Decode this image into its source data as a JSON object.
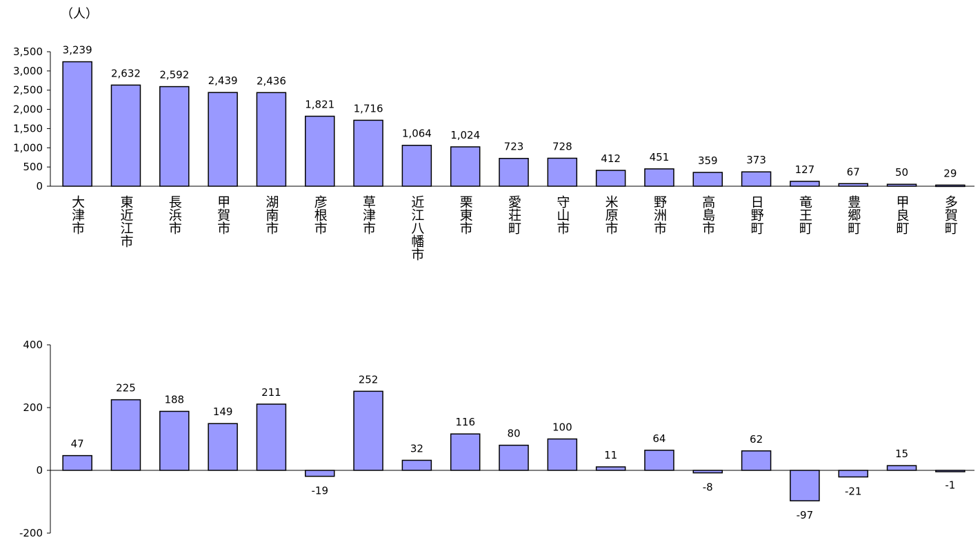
{
  "chart_data": [
    {
      "type": "bar",
      "unit_label": "（人）",
      "categories": [
        "大津市",
        "東近江市",
        "長浜市",
        "甲賀市",
        "湖南市",
        "彦根市",
        "草津市",
        "近江八幡市",
        "栗東市",
        "愛荘町",
        "守山市",
        "米原市",
        "野洲市",
        "高島市",
        "日野町",
        "竜王町",
        "豊郷町",
        "甲良町",
        "多賀町"
      ],
      "values": [
        3239,
        2632,
        2592,
        2439,
        2436,
        1821,
        1716,
        1064,
        1024,
        723,
        728,
        412,
        451,
        359,
        373,
        127,
        67,
        50,
        29
      ],
      "value_labels": [
        "3,239",
        "2,632",
        "2,592",
        "2,439",
        "2,436",
        "1,821",
        "1,716",
        "1,064",
        "1,024",
        "723",
        "728",
        "412",
        "451",
        "359",
        "373",
        "127",
        "67",
        "50",
        "29"
      ],
      "color": "#9999ff",
      "ylim": [
        0,
        3500
      ],
      "yticks": [
        0,
        500,
        {
          "value": 1000,
          "label": "1,000"
        },
        {
          "value": 1500,
          "label": "1,500"
        },
        {
          "value": 2000,
          "label": "2,000"
        },
        {
          "value": 2500,
          "label": "2,500"
        },
        {
          "value": 3000,
          "label": "3,000"
        },
        {
          "value": 3500,
          "label": "3,500"
        }
      ]
    },
    {
      "type": "bar",
      "values": [
        47,
        225,
        188,
        149,
        211,
        -19,
        252,
        32,
        116,
        80,
        100,
        11,
        64,
        -8,
        62,
        -97,
        -21,
        15,
        -1
      ],
      "color": "#9999ff",
      "ylim": [
        -200,
        400
      ],
      "yticks": [
        -200,
        0,
        200,
        400
      ]
    }
  ]
}
